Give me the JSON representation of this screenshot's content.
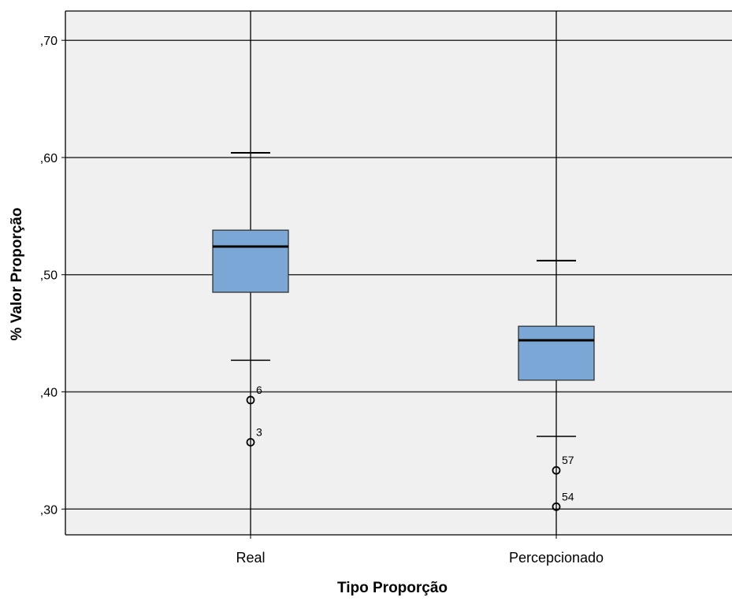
{
  "chart_data": {
    "type": "boxplot",
    "title": "",
    "xlabel": "Tipo Proporção",
    "ylabel": "% Valor Proporção",
    "ylim": [
      0.278,
      0.725
    ],
    "yticks": [
      {
        "value": 0.3,
        "label": ",30"
      },
      {
        "value": 0.4,
        "label": ",40"
      },
      {
        "value": 0.5,
        "label": ",50"
      },
      {
        "value": 0.6,
        "label": ",60"
      },
      {
        "value": 0.7,
        "label": ",70"
      }
    ],
    "grid": true,
    "categories": [
      "Real",
      "Percepcionado"
    ],
    "boxes": [
      {
        "category": "Real",
        "whisker_low": 0.427,
        "q1": 0.485,
        "median": 0.524,
        "q3": 0.538,
        "whisker_high": 0.604,
        "outliers": [
          {
            "value": 0.393,
            "label": "6"
          },
          {
            "value": 0.357,
            "label": "3"
          }
        ]
      },
      {
        "category": "Percepcionado",
        "whisker_low": 0.362,
        "q1": 0.41,
        "median": 0.444,
        "q3": 0.456,
        "whisker_high": 0.512,
        "outliers": [
          {
            "value": 0.333,
            "label": "57"
          },
          {
            "value": 0.302,
            "label": "54"
          }
        ]
      }
    ],
    "colors": {
      "box_fill": "#7aa7d6",
      "plot_bg": "#f0f0f0",
      "grid": "#333333",
      "line": "#000000"
    }
  }
}
